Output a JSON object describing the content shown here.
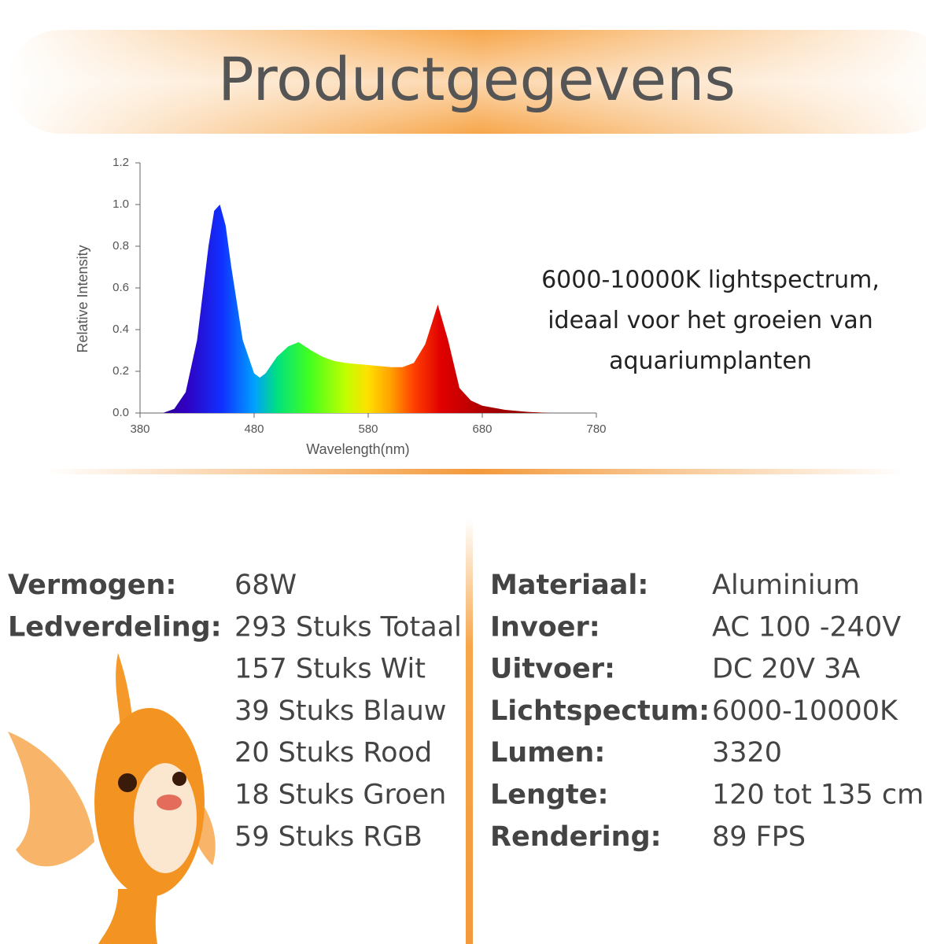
{
  "header": {
    "title": "Productgegevens"
  },
  "chart_data": {
    "type": "area",
    "y_label": "Relative Intensity",
    "x_label": "Wavelength(nm)",
    "x": [
      400,
      410,
      420,
      430,
      440,
      445,
      450,
      455,
      460,
      470,
      480,
      485,
      490,
      500,
      510,
      519,
      530,
      540,
      550,
      560,
      570,
      580,
      590,
      600,
      610,
      620,
      630,
      641,
      650,
      660,
      670,
      680,
      700,
      720,
      740
    ],
    "series": [
      {
        "name": "Relative Intensity",
        "values": [
          0,
          0.02,
          0.1,
          0.35,
          0.8,
          0.97,
          1.0,
          0.9,
          0.7,
          0.35,
          0.19,
          0.17,
          0.19,
          0.27,
          0.32,
          0.34,
          0.3,
          0.27,
          0.25,
          0.24,
          0.235,
          0.23,
          0.225,
          0.22,
          0.22,
          0.24,
          0.33,
          0.52,
          0.35,
          0.12,
          0.06,
          0.035,
          0.015,
          0.005,
          0
        ]
      }
    ],
    "xlim": [
      380,
      780
    ],
    "xticks": [
      380,
      480,
      580,
      680,
      780
    ],
    "ylim": [
      0,
      1.2
    ],
    "yticks": [
      {
        "value": 0,
        "label": "0.0"
      },
      0.2,
      0.4,
      0.6,
      0.8,
      {
        "value": 1,
        "label": "1.0"
      },
      1.2
    ]
  },
  "caption": [
    "6000-10000K lightspectrum,",
    "ideaal voor het groeien van",
    "aquariumplanten"
  ],
  "specs_left": [
    {
      "label": "Vermogen:",
      "value": "68W"
    },
    {
      "label": "Ledverdeling:",
      "value": "293 Stuks Totaal"
    }
  ],
  "led_details": [
    "157 Stuks Wit",
    "39 Stuks Blauw",
    "20 Stuks Rood",
    "18 Stuks Groen",
    "59 Stuks RGB"
  ],
  "specs_right": [
    {
      "label": "Materiaal:",
      "value": "Aluminium"
    },
    {
      "label": "Invoer:",
      "value": "AC 100 -240V"
    },
    {
      "label": "Uitvoer:",
      "value": "DC 20V 3A"
    },
    {
      "label": "Lichtspectum:",
      "value": "6000-10000K"
    },
    {
      "label": "Lumen:",
      "value": "3320"
    },
    {
      "label": "Lengte:",
      "value": "120 tot 135 cm"
    },
    {
      "label": "Rendering:",
      "value": "89 FPS"
    }
  ]
}
